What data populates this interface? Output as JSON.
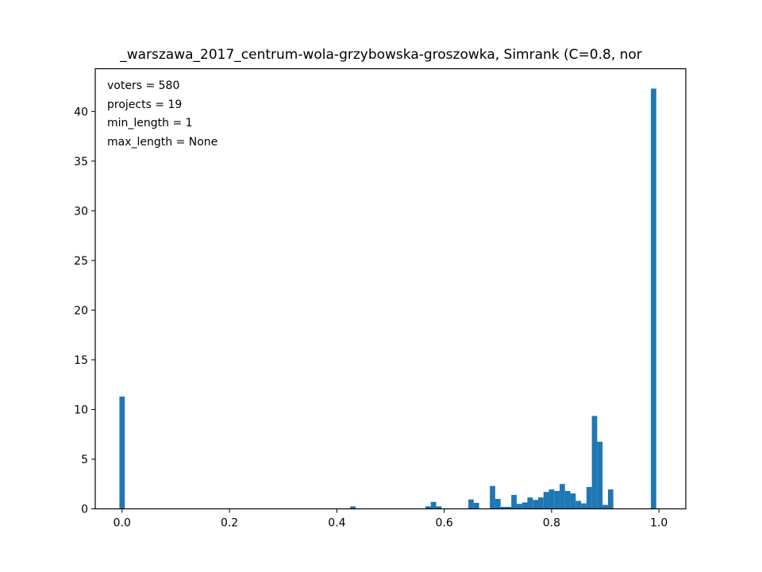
{
  "chart_data": {
    "type": "bar",
    "title": "_warszawa_2017_centrum-wola-grzybowska-groszowka, Simrank (C=0.8, nor",
    "xlabel": "",
    "ylabel": "",
    "xlim": [
      -0.05,
      1.05
    ],
    "ylim": [
      0,
      44.3
    ],
    "bar_color": "#1f77b4",
    "bin_width": 0.01,
    "x_ticks": [
      0.0,
      0.2,
      0.4,
      0.6,
      0.8,
      1.0
    ],
    "x_tick_labels": [
      "0.0",
      "0.2",
      "0.4",
      "0.6",
      "0.8",
      "1.0"
    ],
    "y_ticks": [
      0,
      5,
      10,
      15,
      20,
      25,
      30,
      35,
      40
    ],
    "y_tick_labels": [
      "0",
      "5",
      "10",
      "15",
      "20",
      "25",
      "30",
      "35",
      "40"
    ],
    "annotations": [
      "voters = 580",
      "projects = 19",
      "min_length = 1",
      "max_length = None"
    ],
    "bins": [
      {
        "x": 0.0,
        "value": 11.3
      },
      {
        "x": 0.43,
        "value": 0.25
      },
      {
        "x": 0.57,
        "value": 0.25
      },
      {
        "x": 0.58,
        "value": 0.7
      },
      {
        "x": 0.59,
        "value": 0.25
      },
      {
        "x": 0.65,
        "value": 0.95
      },
      {
        "x": 0.66,
        "value": 0.6
      },
      {
        "x": 0.69,
        "value": 2.3
      },
      {
        "x": 0.7,
        "value": 1.0
      },
      {
        "x": 0.71,
        "value": 0.2
      },
      {
        "x": 0.72,
        "value": 0.2
      },
      {
        "x": 0.73,
        "value": 1.4
      },
      {
        "x": 0.74,
        "value": 0.5
      },
      {
        "x": 0.75,
        "value": 0.65
      },
      {
        "x": 0.76,
        "value": 1.15
      },
      {
        "x": 0.77,
        "value": 0.9
      },
      {
        "x": 0.78,
        "value": 1.15
      },
      {
        "x": 0.79,
        "value": 1.7
      },
      {
        "x": 0.8,
        "value": 1.95
      },
      {
        "x": 0.81,
        "value": 1.8
      },
      {
        "x": 0.82,
        "value": 2.5
      },
      {
        "x": 0.83,
        "value": 1.8
      },
      {
        "x": 0.84,
        "value": 1.55
      },
      {
        "x": 0.85,
        "value": 0.8
      },
      {
        "x": 0.86,
        "value": 0.55
      },
      {
        "x": 0.87,
        "value": 2.2
      },
      {
        "x": 0.88,
        "value": 9.35
      },
      {
        "x": 0.89,
        "value": 6.75
      },
      {
        "x": 0.9,
        "value": 0.4
      },
      {
        "x": 0.91,
        "value": 1.95
      },
      {
        "x": 0.99,
        "value": 42.3
      }
    ]
  }
}
